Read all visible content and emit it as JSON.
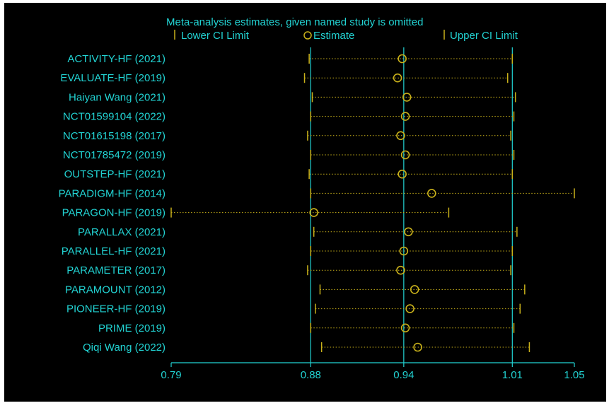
{
  "chart_data": {
    "type": "forest",
    "title": "Meta-analysis estimates, given named study is omitted",
    "legend": {
      "placement": "top",
      "entries": [
        {
          "marker": "|",
          "label": "Lower CI Limit"
        },
        {
          "marker": "circle",
          "label": "Estimate"
        },
        {
          "marker": "|",
          "label": "Upper CI Limit"
        }
      ]
    },
    "x_axis": {
      "min": 0.79,
      "max": 1.05,
      "ticks": [
        0.79,
        0.88,
        0.94,
        1.01,
        1.05
      ],
      "tick_labels": [
        "0.79",
        "0.88",
        "0.94",
        "1.01",
        "1.05"
      ],
      "reference_lines": [
        0.88,
        0.94,
        1.01
      ]
    },
    "studies": [
      {
        "name": "ACTIVITY-HF (2021)",
        "lower": 0.879,
        "estimate": 0.939,
        "upper": 1.01
      },
      {
        "name": "EVALUATE-HF (2019)",
        "lower": 0.876,
        "estimate": 0.936,
        "upper": 1.007
      },
      {
        "name": "Haiyan Wang (2021)",
        "lower": 0.881,
        "estimate": 0.942,
        "upper": 1.012
      },
      {
        "name": "NCT01599104 (2022)",
        "lower": 0.88,
        "estimate": 0.941,
        "upper": 1.011
      },
      {
        "name": "NCT01615198 (2017)",
        "lower": 0.878,
        "estimate": 0.938,
        "upper": 1.009
      },
      {
        "name": "NCT01785472 (2019)",
        "lower": 0.88,
        "estimate": 0.941,
        "upper": 1.011
      },
      {
        "name": "OUTSTEP-HF (2021)",
        "lower": 0.879,
        "estimate": 0.939,
        "upper": 1.01
      },
      {
        "name": "PARADIGM-HF (2014)",
        "lower": 0.88,
        "estimate": 0.958,
        "upper": 1.05
      },
      {
        "name": "PARAGON-HF (2019)",
        "lower": 0.79,
        "estimate": 0.882,
        "upper": 0.969
      },
      {
        "name": "PARALLAX (2021)",
        "lower": 0.882,
        "estimate": 0.943,
        "upper": 1.013
      },
      {
        "name": "PARALLEL-HF (2021)",
        "lower": 0.88,
        "estimate": 0.94,
        "upper": 1.01
      },
      {
        "name": "PARAMETER (2017)",
        "lower": 0.878,
        "estimate": 0.938,
        "upper": 1.009
      },
      {
        "name": "PARAMOUNT (2012)",
        "lower": 0.886,
        "estimate": 0.947,
        "upper": 1.018
      },
      {
        "name": "PIONEER-HF (2019)",
        "lower": 0.883,
        "estimate": 0.944,
        "upper": 1.015
      },
      {
        "name": "PRIME (2019)",
        "lower": 0.88,
        "estimate": 0.941,
        "upper": 1.011
      },
      {
        "name": "Qiqi Wang (2022)",
        "lower": 0.887,
        "estimate": 0.949,
        "upper": 1.021
      }
    ],
    "colors": {
      "background": "#000000",
      "axis": "#22d3d3",
      "text": "#22d3d3",
      "interval": "#c9b11a",
      "marker": "#c9b11a"
    }
  }
}
